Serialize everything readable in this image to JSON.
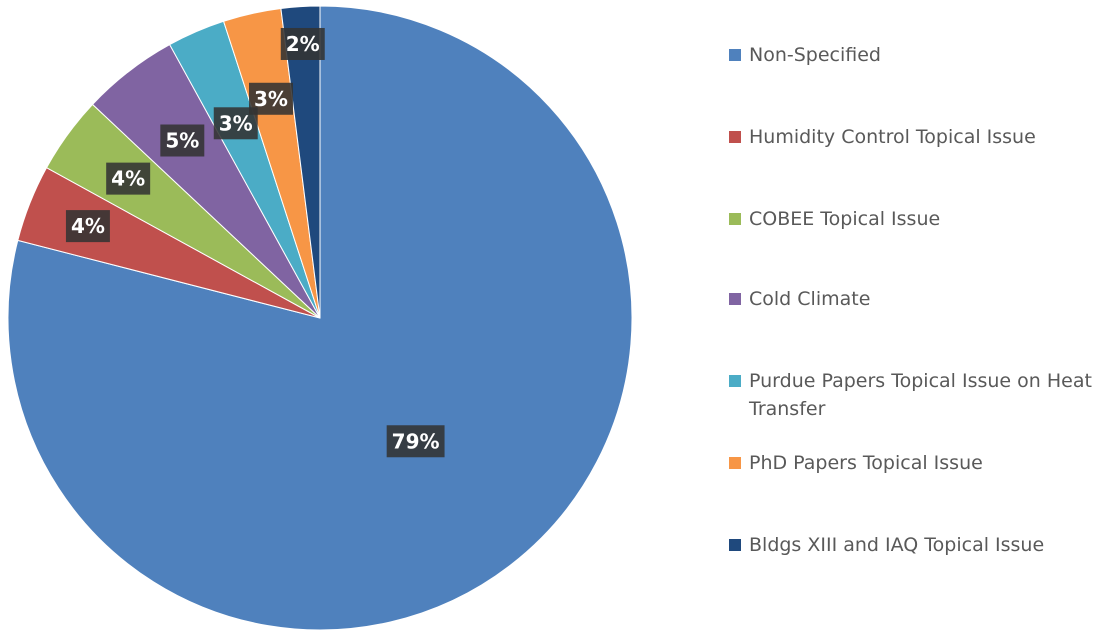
{
  "chart_data": {
    "type": "pie",
    "categories": [
      "Non-Specified",
      "Humidity Control Topical Issue",
      "COBEE Topical Issue",
      "Cold Climate",
      "Purdue Papers Topical Issue on Heat Transfer",
      "PhD Papers Topical Issue",
      "Bldgs XIII and IAQ Topical Issue"
    ],
    "values": [
      79,
      4,
      4,
      5,
      3,
      3,
      2
    ],
    "value_labels": [
      "79%",
      "4%",
      "4%",
      "5%",
      "3%",
      "3%",
      "2%"
    ],
    "colors": [
      "#4f81bd",
      "#c0504d",
      "#9bbb59",
      "#8064a2",
      "#4bacc6",
      "#f79646",
      "#1f497d"
    ],
    "legend": "right"
  }
}
